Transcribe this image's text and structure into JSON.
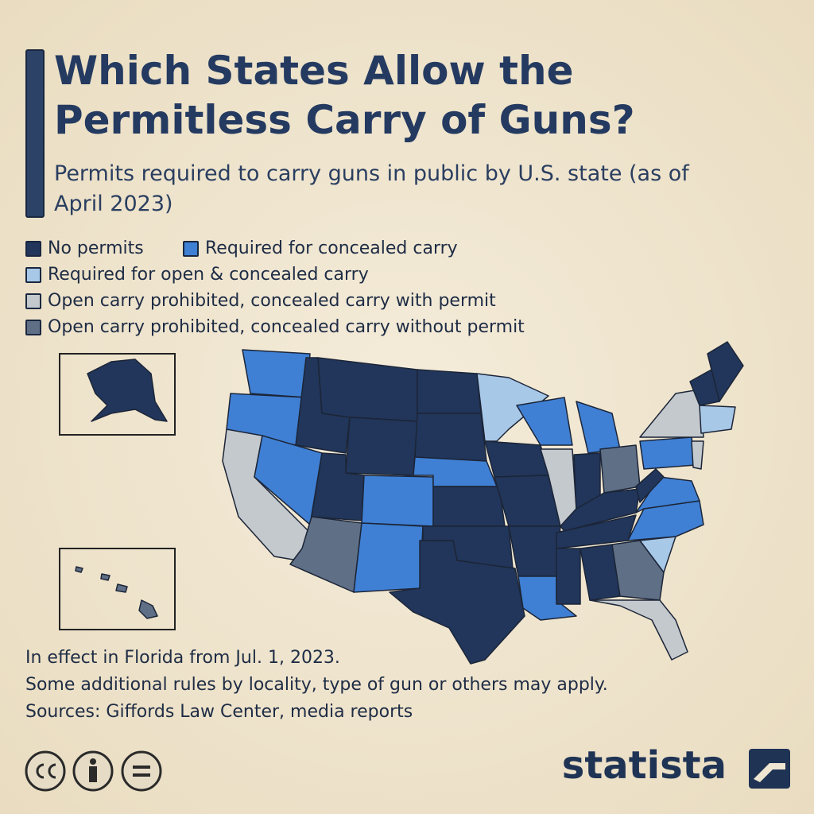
{
  "header": {
    "title": "Which States Allow the Permitless Carry of Guns?",
    "subtitle": "Permits required to carry guns in public by U.S. state (as of April 2023)"
  },
  "legend": [
    {
      "label": "No permits",
      "color": "#21365a"
    },
    {
      "label": "Required for concealed carry",
      "color": "#3f80d4"
    },
    {
      "label": "Required for open & concealed carry",
      "color": "#a8c8e8"
    },
    {
      "label": "Open carry prohibited, concealed carry with permit",
      "color": "#c3c9cd"
    },
    {
      "label": "Open carry prohibited, concealed carry without permit",
      "color": "#5f6f86"
    }
  ],
  "notes": [
    "In effect in Florida from Jul. 1, 2023.",
    "Some additional rules by locality, type of gun or others may apply.",
    "Sources: Giffords Law Center, media reports"
  ],
  "brand": "statista"
}
